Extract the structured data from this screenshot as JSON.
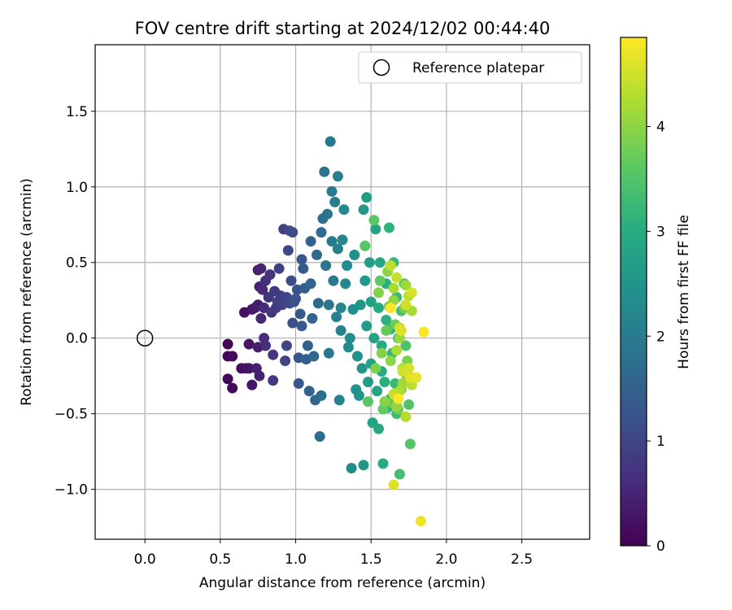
{
  "chart_data": {
    "type": "scatter",
    "title": "FOV centre drift starting at 2024/12/02 00:44:40",
    "xlabel": "Angular distance from reference (arcmin)",
    "ylabel": "Rotation from reference (arcmin)",
    "xlim": [
      -0.33,
      2.95
    ],
    "ylim": [
      -1.33,
      1.94
    ],
    "xticks": [
      "0.0",
      "0.5",
      "1.0",
      "1.5",
      "2.0",
      "2.5"
    ],
    "xtick_values": [
      0.0,
      0.5,
      1.0,
      1.5,
      2.0,
      2.5
    ],
    "yticks": [
      "−1.0",
      "−0.5",
      "0.0",
      "0.5",
      "1.0",
      "1.5"
    ],
    "ytick_values": [
      -1.0,
      -0.5,
      0.0,
      0.5,
      1.0,
      1.5
    ],
    "grid": true,
    "legend": {
      "placement": "top-right",
      "label": "Reference platepar"
    },
    "reference_point": {
      "x": 0.0,
      "y": 0.0
    },
    "colorbar": {
      "label": "Hours from first FF file",
      "range": [
        0,
        4.85
      ],
      "ticks": [
        "0",
        "1",
        "2",
        "3",
        "4"
      ],
      "tick_values": [
        0,
        1,
        2,
        3,
        4
      ],
      "colormap": "viridis"
    },
    "points": [
      [
        0.55,
        -0.04,
        0.05
      ],
      [
        0.55,
        -0.12,
        0.08
      ],
      [
        0.55,
        -0.27,
        0.1
      ],
      [
        0.58,
        -0.33,
        0.12
      ],
      [
        0.58,
        -0.12,
        0.15
      ],
      [
        0.64,
        -0.2,
        0.18
      ],
      [
        0.66,
        0.17,
        0.2
      ],
      [
        0.67,
        -0.2,
        0.22
      ],
      [
        0.69,
        -0.2,
        0.25
      ],
      [
        0.69,
        -0.04,
        0.28
      ],
      [
        0.71,
        0.19,
        0.3
      ],
      [
        0.71,
        -0.31,
        0.32
      ],
      [
        0.73,
        0.2,
        0.35
      ],
      [
        0.75,
        0.22,
        0.38
      ],
      [
        0.75,
        0.45,
        0.4
      ],
      [
        0.75,
        -0.06,
        0.42
      ],
      [
        0.74,
        -0.2,
        0.45
      ],
      [
        0.76,
        -0.25,
        0.48
      ],
      [
        0.76,
        0.34,
        0.5
      ],
      [
        0.77,
        0.46,
        0.52
      ],
      [
        0.77,
        0.13,
        0.55
      ],
      [
        0.78,
        0.32,
        0.57
      ],
      [
        0.79,
        0.2,
        0.6
      ],
      [
        0.79,
        0.0,
        0.62
      ],
      [
        0.8,
        -0.05,
        0.65
      ],
      [
        0.8,
        0.38,
        0.67
      ],
      [
        0.82,
        0.27,
        0.7
      ],
      [
        0.83,
        0.42,
        0.72
      ],
      [
        0.84,
        0.17,
        0.75
      ],
      [
        0.85,
        -0.11,
        0.77
      ],
      [
        0.85,
        -0.28,
        0.8
      ],
      [
        0.86,
        0.31,
        0.82
      ],
      [
        0.87,
        0.2,
        0.85
      ],
      [
        0.88,
        0.24,
        0.87
      ],
      [
        0.89,
        0.46,
        0.9
      ],
      [
        0.9,
        0.28,
        0.92
      ],
      [
        0.91,
        0.22,
        0.95
      ],
      [
        0.92,
        0.72,
        0.97
      ],
      [
        0.93,
        -0.15,
        1.0
      ],
      [
        0.94,
        0.27,
        1.02
      ],
      [
        0.94,
        -0.05,
        1.05
      ],
      [
        0.95,
        0.58,
        1.07
      ],
      [
        0.96,
        0.71,
        1.1
      ],
      [
        0.96,
        0.23,
        1.12
      ],
      [
        0.97,
        0.38,
        1.15
      ],
      [
        0.98,
        0.7,
        1.17
      ],
      [
        0.98,
        0.1,
        1.2
      ],
      [
        0.99,
        0.24,
        1.22
      ],
      [
        1.0,
        0.26,
        1.25
      ],
      [
        1.01,
        0.32,
        1.27
      ],
      [
        1.02,
        -0.13,
        1.3
      ],
      [
        1.02,
        -0.3,
        1.32
      ],
      [
        1.03,
        0.16,
        1.35
      ],
      [
        1.04,
        0.52,
        1.37
      ],
      [
        1.04,
        0.08,
        1.4
      ],
      [
        1.05,
        0.46,
        1.42
      ],
      [
        1.06,
        0.33,
        1.45
      ],
      [
        1.07,
        -0.14,
        1.47
      ],
      [
        1.08,
        -0.05,
        1.5
      ],
      [
        1.09,
        -0.35,
        1.52
      ],
      [
        1.1,
        0.64,
        1.55
      ],
      [
        1.1,
        0.36,
        1.57
      ],
      [
        1.11,
        0.13,
        1.6
      ],
      [
        1.12,
        -0.12,
        1.62
      ],
      [
        1.13,
        -0.41,
        1.65
      ],
      [
        1.14,
        0.55,
        1.67
      ],
      [
        1.15,
        0.23,
        1.7
      ],
      [
        1.16,
        -0.65,
        1.72
      ],
      [
        1.17,
        0.7,
        1.75
      ],
      [
        1.17,
        -0.38,
        1.77
      ],
      [
        1.18,
        0.79,
        1.8
      ],
      [
        1.19,
        1.1,
        1.82
      ],
      [
        1.2,
        0.48,
        1.85
      ],
      [
        1.21,
        0.82,
        1.87
      ],
      [
        1.22,
        0.22,
        1.9
      ],
      [
        1.22,
        -0.1,
        1.92
      ],
      [
        1.23,
        1.3,
        1.95
      ],
      [
        1.24,
        0.64,
        1.97
      ],
      [
        1.24,
        0.97,
        2.0
      ],
      [
        1.25,
        0.38,
        2.02
      ],
      [
        1.26,
        0.9,
        2.05
      ],
      [
        1.27,
        0.14,
        2.07
      ],
      [
        1.28,
        1.07,
        2.1
      ],
      [
        1.28,
        0.59,
        2.12
      ],
      [
        1.29,
        -0.41,
        2.15
      ],
      [
        1.3,
        0.05,
        2.17
      ],
      [
        1.3,
        0.2,
        2.2
      ],
      [
        1.31,
        0.65,
        2.22
      ],
      [
        1.32,
        0.85,
        2.25
      ],
      [
        1.33,
        0.36,
        2.27
      ],
      [
        1.34,
        0.48,
        2.3
      ],
      [
        1.35,
        -0.06,
        2.32
      ],
      [
        1.36,
        0.0,
        2.35
      ],
      [
        1.37,
        -0.86,
        2.37
      ],
      [
        1.38,
        0.19,
        2.4
      ],
      [
        1.39,
        0.55,
        2.42
      ],
      [
        1.4,
        -0.34,
        2.45
      ],
      [
        1.41,
        -0.12,
        2.47
      ],
      [
        1.42,
        -0.38,
        2.5
      ],
      [
        1.43,
        0.22,
        2.52
      ],
      [
        1.44,
        -0.2,
        2.55
      ],
      [
        1.45,
        0.85,
        2.57
      ],
      [
        1.45,
        -0.84,
        2.6
      ],
      [
        1.46,
        0.38,
        2.62
      ],
      [
        1.47,
        0.08,
        2.65
      ],
      [
        1.47,
        0.93,
        2.67
      ],
      [
        1.48,
        -0.29,
        2.7
      ],
      [
        1.49,
        0.5,
        2.72
      ],
      [
        1.5,
        0.24,
        2.75
      ],
      [
        1.5,
        -0.17,
        2.77
      ],
      [
        1.51,
        -0.56,
        2.8
      ],
      [
        1.52,
        0.0,
        2.82
      ],
      [
        1.53,
        0.72,
        2.85
      ],
      [
        1.54,
        -0.35,
        2.87
      ],
      [
        1.55,
        -0.6,
        2.9
      ],
      [
        1.55,
        0.2,
        2.92
      ],
      [
        1.56,
        0.5,
        2.95
      ],
      [
        1.57,
        -0.05,
        2.97
      ],
      [
        1.57,
        -0.22,
        3.0
      ],
      [
        1.58,
        -0.83,
        3.02
      ],
      [
        1.59,
        -0.29,
        3.05
      ],
      [
        1.6,
        0.36,
        3.07
      ],
      [
        1.6,
        0.12,
        3.1
      ],
      [
        1.61,
        -0.46,
        3.12
      ],
      [
        1.62,
        0.73,
        3.15
      ],
      [
        1.63,
        -0.4,
        3.17
      ],
      [
        1.63,
        0.06,
        3.2
      ],
      [
        1.64,
        -0.1,
        3.22
      ],
      [
        1.65,
        0.5,
        3.25
      ],
      [
        1.66,
        -0.3,
        3.27
      ],
      [
        1.67,
        0.27,
        3.3
      ],
      [
        1.67,
        -0.5,
        3.32
      ],
      [
        1.68,
        0.0,
        3.35
      ],
      [
        1.69,
        -0.9,
        3.37
      ],
      [
        1.7,
        0.18,
        3.4
      ],
      [
        1.71,
        -0.2,
        3.42
      ],
      [
        1.72,
        0.36,
        3.45
      ],
      [
        1.73,
        -0.05,
        3.47
      ],
      [
        1.74,
        -0.26,
        3.5
      ],
      [
        1.75,
        -0.44,
        3.52
      ],
      [
        1.76,
        -0.7,
        3.55
      ],
      [
        1.46,
        0.61,
        3.57
      ],
      [
        1.48,
        -0.42,
        3.6
      ],
      [
        1.52,
        0.78,
        3.62
      ],
      [
        1.56,
        0.38,
        3.65
      ],
      [
        1.58,
        -0.47,
        3.67
      ],
      [
        1.6,
        0.05,
        3.7
      ],
      [
        1.62,
        0.21,
        3.72
      ],
      [
        1.64,
        -0.43,
        3.75
      ],
      [
        1.66,
        0.09,
        3.77
      ],
      [
        1.68,
        -0.47,
        3.8
      ],
      [
        1.7,
        -0.34,
        3.82
      ],
      [
        1.72,
        0.2,
        3.85
      ],
      [
        1.74,
        -0.15,
        3.87
      ],
      [
        1.53,
        -0.2,
        3.9
      ],
      [
        1.55,
        0.3,
        3.92
      ],
      [
        1.57,
        -0.1,
        3.95
      ],
      [
        1.59,
        -0.42,
        3.97
      ],
      [
        1.61,
        0.44,
        4.0
      ],
      [
        1.63,
        -0.15,
        4.02
      ],
      [
        1.65,
        0.25,
        4.05
      ],
      [
        1.67,
        -0.45,
        4.07
      ],
      [
        1.69,
        0.0,
        4.1
      ],
      [
        1.71,
        -0.3,
        4.12
      ],
      [
        1.73,
        0.35,
        4.15
      ],
      [
        1.75,
        -0.25,
        4.17
      ],
      [
        1.77,
        0.18,
        4.2
      ],
      [
        1.65,
        0.33,
        4.22
      ],
      [
        1.67,
        -0.08,
        4.25
      ],
      [
        1.69,
        -0.35,
        4.27
      ],
      [
        1.71,
        -0.2,
        4.3
      ],
      [
        1.73,
        -0.52,
        4.32
      ],
      [
        1.75,
        0.28,
        4.35
      ],
      [
        1.77,
        -0.31,
        4.37
      ],
      [
        1.63,
        0.48,
        4.4
      ],
      [
        1.65,
        -0.37,
        4.42
      ],
      [
        1.67,
        0.4,
        4.45
      ],
      [
        1.69,
        0.07,
        4.47
      ],
      [
        1.71,
        -0.22,
        4.5
      ],
      [
        1.73,
        0.22,
        4.52
      ],
      [
        1.75,
        -0.2,
        4.55
      ],
      [
        1.77,
        0.3,
        4.57
      ],
      [
        1.65,
        -0.97,
        4.6
      ],
      [
        1.7,
        0.05,
        4.62
      ],
      [
        1.76,
        -0.26,
        4.65
      ],
      [
        1.8,
        -0.26,
        4.7
      ],
      [
        1.83,
        -1.21,
        4.75
      ],
      [
        1.85,
        0.04,
        4.8
      ],
      [
        1.63,
        0.2,
        4.82
      ],
      [
        1.68,
        -0.4,
        4.84
      ]
    ]
  }
}
